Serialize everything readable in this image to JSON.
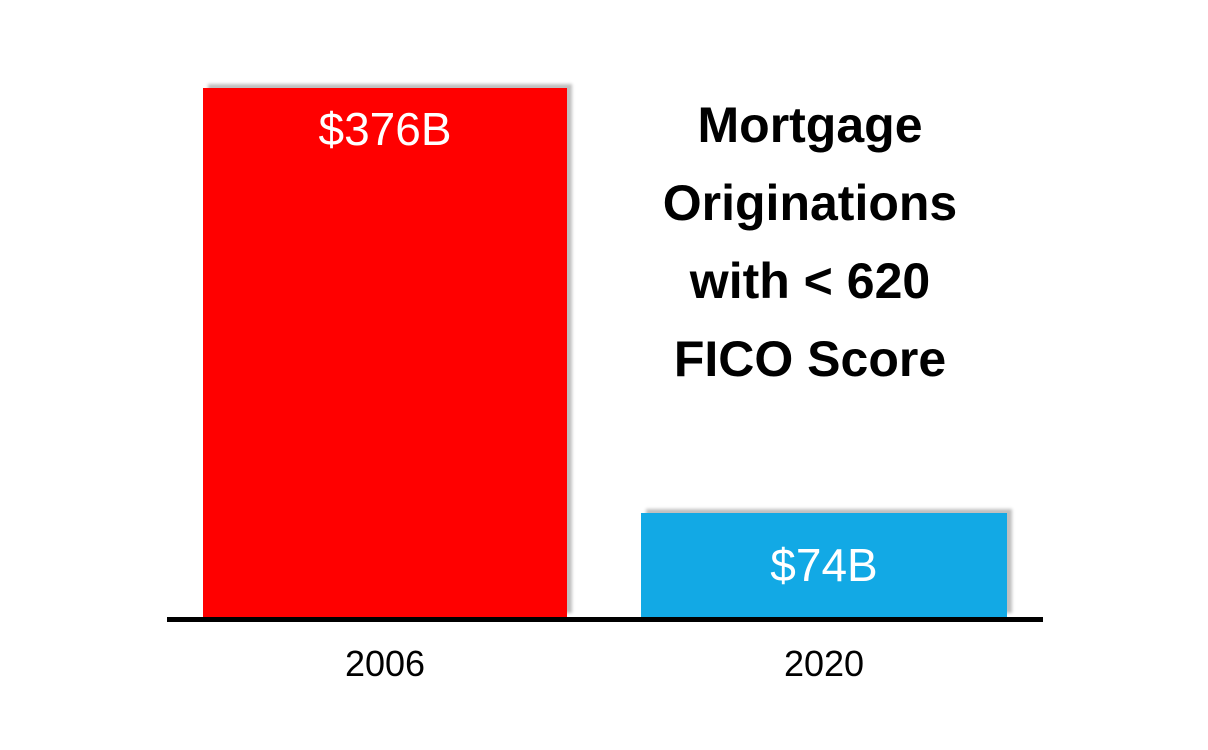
{
  "chart_data": {
    "type": "bar",
    "title": "Mortgage Originations with < 620 FICO Score",
    "title_lines": [
      "Mortgage",
      "Originations",
      "with < 620",
      "FICO Score"
    ],
    "categories": [
      "2006",
      "2020"
    ],
    "values": [
      376,
      74
    ],
    "value_labels": [
      "$376B",
      "$74B"
    ],
    "ylim": [
      0,
      376
    ],
    "grid": false,
    "legend": false,
    "colors": {
      "bar_2006": "#ff0000",
      "bar_2020": "#12a9e5",
      "axis": "#000000",
      "title_text": "#000000",
      "value_label_text": "#ffffff",
      "category_label_text": "#000000",
      "background": "#ffffff"
    }
  }
}
